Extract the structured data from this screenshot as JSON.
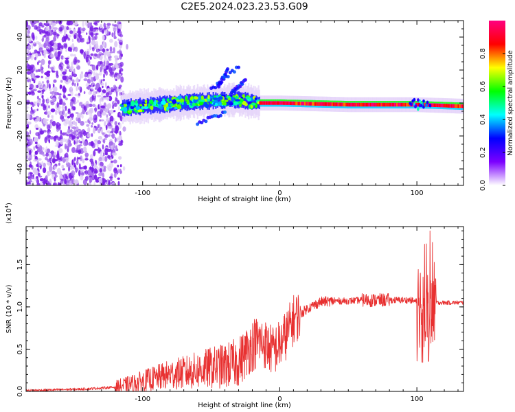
{
  "title": "C2E5.2024.023.23.53.G09",
  "chart_data": [
    {
      "type": "heatmap",
      "xlabel": "Height of straight line (km)",
      "ylabel": "Frequency (Hz)",
      "xlim": [
        -185,
        134
      ],
      "ylim": [
        -50,
        50
      ],
      "xticks": [
        -100,
        0,
        100
      ],
      "yticks": [
        -40,
        -20,
        0,
        20,
        40
      ],
      "colorbar": {
        "label": "Normalized spectral amplitude",
        "range": [
          0.0,
          1.0
        ],
        "ticks": [
          "0.0",
          "0.2",
          "0.4",
          "0.6",
          "0.8"
        ],
        "colormap": [
          "#ffffff",
          "#7c00ff",
          "#0000ff",
          "#00ffff",
          "#00ff00",
          "#ffff00",
          "#ff0000",
          "#ff0080"
        ]
      },
      "noise_region_x": [
        -185,
        -115
      ],
      "signal_center_hz": [
        {
          "x": -115,
          "y": -3
        },
        {
          "x": -60,
          "y": 1
        },
        {
          "x": -30,
          "y": 2
        },
        {
          "x": -15,
          "y": 0
        },
        {
          "x": 0,
          "y": 0
        },
        {
          "x": 50,
          "y": -1
        },
        {
          "x": 100,
          "y": -1
        },
        {
          "x": 134,
          "y": -2
        }
      ]
    },
    {
      "type": "line",
      "xlabel": "Height of straight line (km)",
      "ylabel": "SNR (10 * v/v)",
      "yscale_label": "(x10",
      "yscale_exponent": "4",
      "xlim": [
        -185,
        134
      ],
      "ylim": [
        0,
        1.95
      ],
      "xticks": [
        -100,
        0,
        100
      ],
      "yticks": [
        "0.0",
        "0.5",
        "1.0",
        "1.5"
      ],
      "line_color": "#e83030",
      "series": [
        {
          "x": [
            -185,
            -160,
            -140,
            -120,
            -110,
            -100,
            -90,
            -80,
            -70,
            -60,
            -50,
            -40,
            -30,
            -25,
            -20,
            -15,
            -10,
            -5,
            0,
            5,
            10,
            20,
            30,
            40,
            50,
            60,
            70,
            80,
            90,
            95,
            100,
            105,
            108,
            110,
            112,
            115,
            120,
            125,
            134
          ],
          "y": [
            0.01,
            0.02,
            0.03,
            0.05,
            0.08,
            0.12,
            0.16,
            0.2,
            0.22,
            0.25,
            0.28,
            0.3,
            0.35,
            0.45,
            0.55,
            0.6,
            0.55,
            0.48,
            0.55,
            0.68,
            0.85,
            0.98,
            1.06,
            1.07,
            1.07,
            1.08,
            1.08,
            1.08,
            1.08,
            1.08,
            1.06,
            1.04,
            1.05,
            1.07,
            1.06,
            1.05,
            1.05,
            1.05,
            1.05
          ]
        }
      ]
    }
  ]
}
